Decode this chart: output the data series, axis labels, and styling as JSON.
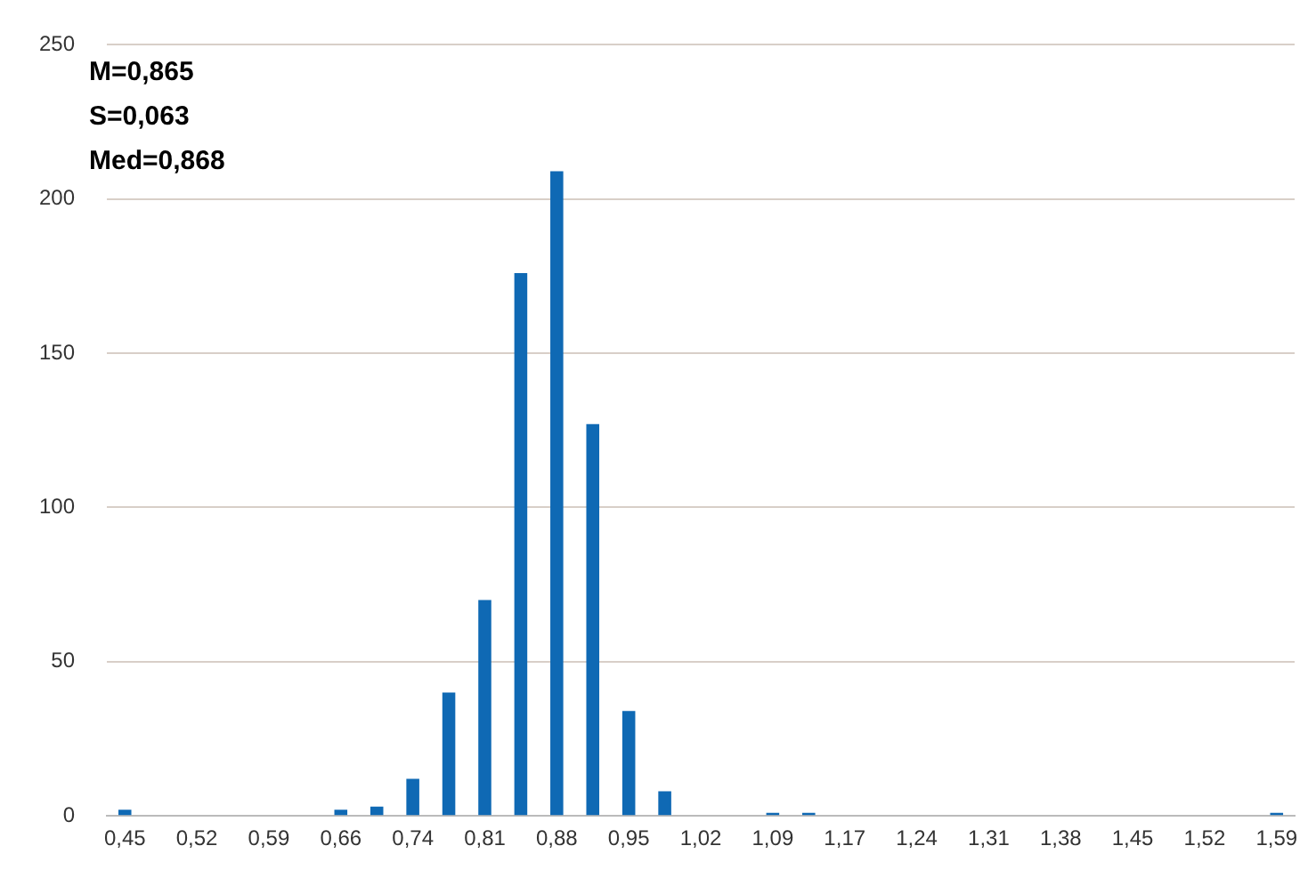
{
  "chart_data": {
    "type": "bar",
    "categories": [
      "0,45",
      null,
      "0,52",
      null,
      "0,59",
      null,
      "0,66",
      null,
      "0,74",
      null,
      "0,81",
      null,
      "0,88",
      null,
      "0,95",
      null,
      "1,02",
      null,
      "1,09",
      null,
      "1,17",
      null,
      "1,24",
      null,
      "1,31",
      null,
      "1,38",
      null,
      "1,45",
      null,
      "1,52",
      null,
      "1,59"
    ],
    "values": [
      2,
      0,
      0,
      0,
      0,
      0,
      2,
      3,
      12,
      40,
      70,
      176,
      209,
      127,
      34,
      8,
      0,
      0,
      1,
      1,
      0,
      0,
      0,
      0,
      0,
      0,
      0,
      0,
      0,
      0,
      0,
      0,
      1
    ],
    "color": "#0f69b4",
    "ylim": [
      0,
      250
    ],
    "yticks": [
      0,
      50,
      100,
      150,
      200,
      250
    ],
    "grid": "y",
    "annotations": [
      "M=0,865",
      "S=0,063",
      "Med=0,868"
    ]
  }
}
